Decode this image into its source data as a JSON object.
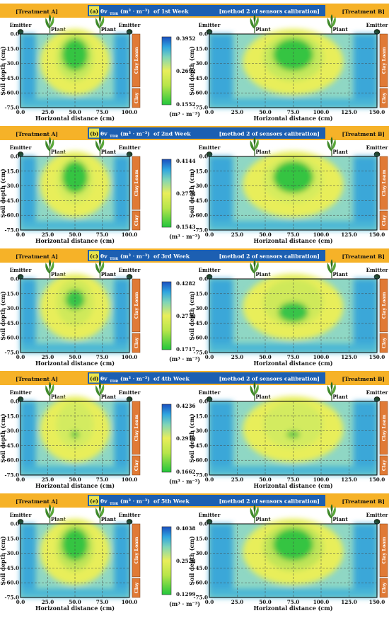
{
  "figure": {
    "treatment_a": "[Treatment A]",
    "treatment_b": "[Treatment B]",
    "method": "[method 2 of sensors calibration]",
    "emitter": "Emitter",
    "plant": "Plant",
    "ylabel": "Soil depth (cm)",
    "xlabel": "Horizontal distance (cm)",
    "unit": "(m³ · m⁻³)",
    "soil_upper": "Clay Loam",
    "soil_lower": "Clay",
    "colors": {
      "header_bar": "#f6b228",
      "header_text_bg": "#1c5fb2",
      "soil_bar": "#e07a36",
      "low": "#23c63c",
      "mid": "#e7ee55",
      "high": "#1a4fbf"
    }
  },
  "chart_data": [
    {
      "type": "heatmap",
      "panel": "(a)",
      "title_mid": "θv",
      "title_sub": "TDR",
      "title_unit": "(m³ · m⁻³)",
      "title_week": "of 1st Week",
      "colorbar": {
        "max": "0.3952",
        "mid": "0.2692",
        "min": "0.1552"
      },
      "treatment_a": {
        "x_ticks": [
          "0.0",
          "25.0",
          "50.0",
          "75.0",
          "100.0"
        ],
        "y_ticks": [
          "0.0",
          "-15.0",
          "-30.0",
          "-45.0",
          "-60.0",
          "-75.0"
        ],
        "xlim": [
          0,
          100
        ],
        "ylim": [
          -75,
          0
        ]
      },
      "treatment_b": {
        "x_ticks": [
          "0.0",
          "25.0",
          "50.0",
          "75.0",
          "100.0",
          "125.0",
          "150.0"
        ],
        "y_ticks": [
          "0.0",
          "-15.0",
          "-30.0",
          "-45.0",
          "-60.0",
          "-75.0"
        ],
        "xlim": [
          0,
          150
        ],
        "ylim": [
          -75,
          0
        ]
      }
    },
    {
      "type": "heatmap",
      "panel": "(b)",
      "title_mid": "θv",
      "title_sub": "TDR",
      "title_unit": "(m³ · m⁻³)",
      "title_week": "of 2nd Week",
      "colorbar": {
        "max": "0.4144",
        "mid": "0.2778",
        "min": "0.1543"
      },
      "treatment_a": {
        "x_ticks": [
          "0.0",
          "25.0",
          "50.0",
          "75.0",
          "100.0"
        ],
        "y_ticks": [
          "0.0",
          "-15.0",
          "-30.0",
          "-45.0",
          "-60.0",
          "-75.0"
        ],
        "xlim": [
          0,
          100
        ],
        "ylim": [
          -75,
          0
        ]
      },
      "treatment_b": {
        "x_ticks": [
          "0.0",
          "25.0",
          "50.0",
          "75.0",
          "100.0",
          "125.0",
          "150.0"
        ],
        "y_ticks": [
          "0.0",
          "-15.0",
          "-30.0",
          "-45.0",
          "-60.0",
          "-75.0"
        ],
        "xlim": [
          0,
          150
        ],
        "ylim": [
          -75,
          0
        ]
      }
    },
    {
      "type": "heatmap",
      "panel": "(c)",
      "title_mid": "θv",
      "title_sub": "TDR",
      "title_unit": "(m³ · m⁻³)",
      "title_week": "of 3rd Week",
      "colorbar": {
        "max": "0.4282",
        "mid": "0.2730",
        "min": "0.1717"
      },
      "treatment_a": {
        "x_ticks": [
          "0.0",
          "25.0",
          "50.0",
          "75.0",
          "100.0"
        ],
        "y_ticks": [
          "0.0",
          "-15.0",
          "-30.0",
          "-45.0",
          "-60.0",
          "-75.0"
        ],
        "xlim": [
          0,
          100
        ],
        "ylim": [
          -75,
          0
        ]
      },
      "treatment_b": {
        "x_ticks": [
          "0.0",
          "25.0",
          "50.0",
          "75.0",
          "100.0",
          "125.0",
          "150.0"
        ],
        "y_ticks": [
          "0.0",
          "-15.0",
          "-30.0",
          "-45.0",
          "-60.0",
          "-75.0"
        ],
        "xlim": [
          0,
          150
        ],
        "ylim": [
          -75,
          0
        ]
      }
    },
    {
      "type": "heatmap",
      "panel": "(d)",
      "title_mid": "θv",
      "title_sub": "TDR",
      "title_unit": "(m³ · m⁻³)",
      "title_week": "of 4th Week",
      "colorbar": {
        "max": "0.4236",
        "mid": "0.2910",
        "min": "0.1662"
      },
      "treatment_a": {
        "x_ticks": [
          "0.0",
          "25.0",
          "50.0",
          "75.0",
          "100.0"
        ],
        "y_ticks": [
          "0.0",
          "-15.0",
          "-30.0",
          "-45.0",
          "-60.0",
          "-75.0"
        ],
        "xlim": [
          0,
          100
        ],
        "ylim": [
          -75,
          0
        ]
      },
      "treatment_b": {
        "x_ticks": [
          "0.0",
          "25.0",
          "50.0",
          "75.0",
          "100.0",
          "125.0",
          "150.0"
        ],
        "y_ticks": [
          "0.0",
          "-15.0",
          "-30.0",
          "-45.0",
          "-60.0",
          "-75.0"
        ],
        "xlim": [
          0,
          150
        ],
        "ylim": [
          -75,
          0
        ]
      }
    },
    {
      "type": "heatmap",
      "panel": "(e)",
      "title_mid": "θv",
      "title_sub": "TDR",
      "title_unit": "(m³ · m⁻³)",
      "title_week": "of 5th Week",
      "colorbar": {
        "max": "0.4038",
        "mid": "0.2528",
        "min": "0.1299"
      },
      "treatment_a": {
        "x_ticks": [
          "0.0",
          "25.0",
          "50.0",
          "75.0",
          "100.0"
        ],
        "y_ticks": [
          "0.0",
          "-15.0",
          "-30.0",
          "-45.0",
          "-60.0",
          "-75.0"
        ],
        "xlim": [
          0,
          100
        ],
        "ylim": [
          -75,
          0
        ]
      },
      "treatment_b": {
        "x_ticks": [
          "0.0",
          "25.0",
          "50.0",
          "75.0",
          "100.0",
          "125.0",
          "150.0"
        ],
        "y_ticks": [
          "0.0",
          "-15.0",
          "-30.0",
          "-45.0",
          "-60.0",
          "-75.0"
        ],
        "xlim": [
          0,
          150
        ],
        "ylim": [
          -75,
          0
        ]
      }
    }
  ]
}
